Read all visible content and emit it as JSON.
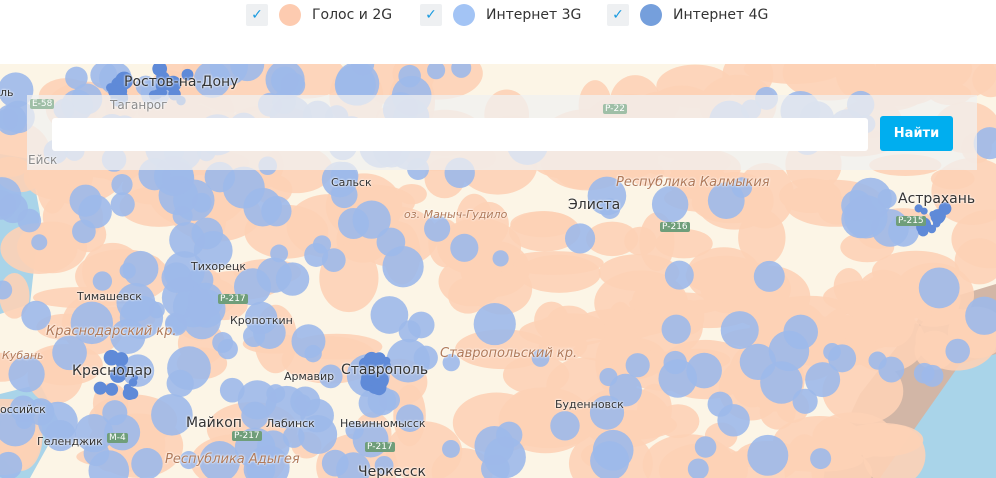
{
  "legend": [
    {
      "label": "Голос и 2G",
      "checked": true,
      "color": "#fdcbb0"
    },
    {
      "label": "Интернет 3G",
      "checked": true,
      "color": "#a3c4f5"
    },
    {
      "label": "Интернет 4G",
      "checked": true,
      "color": "#759fdc"
    }
  ],
  "search": {
    "value": "",
    "button": "Найти"
  },
  "map": {
    "colors": {
      "land": "#fcf5e6",
      "voice": "#fdd2b6",
      "g3": "#9db9ea",
      "g4": "#5f8ad8",
      "sea": "#a9d4e9",
      "mountain": "#d2b6a6"
    },
    "cities": [
      "Ростов-на-Дону",
      "Таганрог",
      "Ейск",
      "Сальск",
      "Элиста",
      "Астрахань",
      "Тихорецк",
      "Тимашевск",
      "Кропоткин",
      "Краснодар",
      "Армавир",
      "Ставрополь",
      "Буденновск",
      "Майкоп",
      "Лабинск",
      "Невинномысск",
      "Черкесск",
      "Геленджик",
      "оссийск",
      "Кубань",
      "ль"
    ],
    "regions": [
      "Республика Калмыкия",
      "Краснодарский кр.",
      "Ставропольский кр.",
      "Республика Адыгея"
    ],
    "lakes": [
      "оз. Маныч-Гудило"
    ],
    "roads": [
      "E-58",
      "P-217",
      "P-216",
      "P-215",
      "M-4",
      "P-22",
      "M-4",
      "P-217",
      "P-217"
    ]
  }
}
